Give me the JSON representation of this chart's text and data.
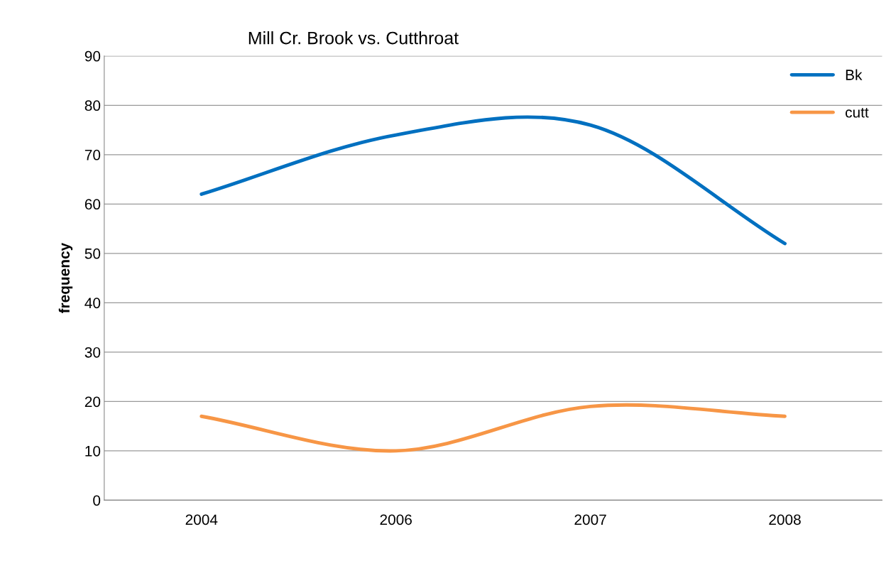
{
  "chart_data": {
    "type": "line",
    "title": "Mill Cr. Brook vs. Cutthroat",
    "ylabel": "frequency",
    "categories": [
      "2004",
      "2006",
      "2007",
      "2008"
    ],
    "series": [
      {
        "name": "Bk",
        "color": "#0070c0",
        "values": [
          62,
          74,
          76,
          52
        ]
      },
      {
        "name": "cutt",
        "color": "#f79646",
        "values": [
          17,
          10,
          19,
          17
        ]
      }
    ],
    "ylim": [
      0,
      90
    ],
    "yticks": [
      0,
      10,
      20,
      30,
      40,
      50,
      60,
      70,
      80,
      90
    ],
    "grid": "y",
    "legend": "top right",
    "marker": "none",
    "line_style": "solid"
  }
}
